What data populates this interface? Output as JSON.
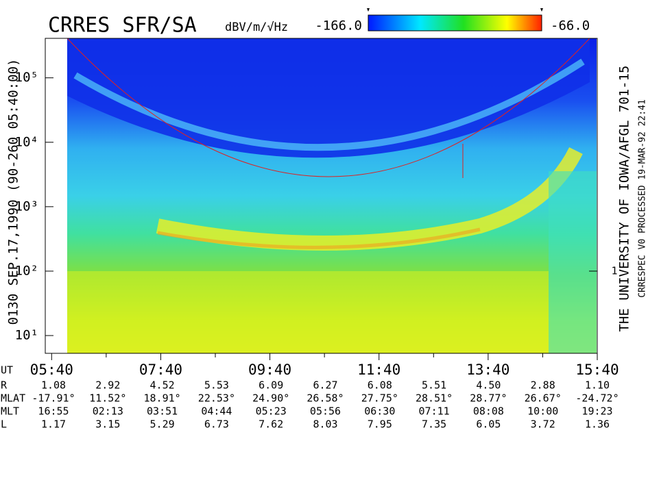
{
  "chart_data": {
    "type": "spectrogram",
    "title": "CRRES SFR/SA",
    "colorbar_label": "dBV/m/√Hz",
    "clim": [
      {
        "value": -166,
        "label": "-166.0"
      },
      {
        "value": -66,
        "label": "-66.0"
      }
    ],
    "ylabel": "0130   SEP.17,1990   (90-260 05:40:00)",
    "right_label": "THE UNIVERSITY OF IOWA/AFGL  701-15",
    "right_sublabel": "CRRESPEC V0    PROCESSED 19-MAR-92  22:41",
    "log_y": true,
    "ylim": [
      5.3,
      410000
    ],
    "yticks": [
      {
        "value": 10,
        "label": "10¹"
      },
      {
        "value": 100,
        "label": "10²"
      },
      {
        "value": 1000,
        "label": "10³"
      },
      {
        "value": 10000,
        "label": "10⁴"
      },
      {
        "value": 100000,
        "label": "10⁵"
      }
    ],
    "y2lim": [
      0.053,
      4100
    ],
    "y2ticks": [
      1
    ],
    "xlim": [
      333,
      940
    ],
    "xticks": [
      {
        "value": 340,
        "label": "05:40"
      },
      {
        "value": 460,
        "label": "07:40"
      },
      {
        "value": 580,
        "label": "09:40"
      },
      {
        "value": 700,
        "label": "11:40"
      },
      {
        "value": 820,
        "label": "13:40"
      },
      {
        "value": 940,
        "label": "15:40"
      }
    ],
    "xminor": [
      400,
      520,
      640,
      760,
      880
    ],
    "ephemeris": {
      "ut_label": "UT",
      "rows": [
        {
          "label": "R",
          "values": [
            "1.08",
            "2.92",
            "4.52",
            "5.53",
            "6.09",
            "6.27",
            "6.08",
            "5.51",
            "4.50",
            "2.88",
            "1.10"
          ]
        },
        {
          "label": "MLAT",
          "values": [
            "-17.91°",
            "11.52°",
            "18.91°",
            "22.53°",
            "24.90°",
            "26.58°",
            "27.75°",
            "28.51°",
            "28.77°",
            "26.67°",
            "-24.72°"
          ]
        },
        {
          "label": "MLT",
          "values": [
            "16:55",
            "02:13",
            "03:51",
            "04:44",
            "05:23",
            "05:56",
            "06:30",
            "07:11",
            "08:08",
            "10:00",
            "19:23"
          ]
        },
        {
          "label": "L",
          "values": [
            "1.17",
            "3.15",
            "5.29",
            "6.73",
            "7.62",
            "8.03",
            "7.95",
            "7.35",
            "6.05",
            "3.72",
            "1.36"
          ]
        }
      ]
    }
  }
}
